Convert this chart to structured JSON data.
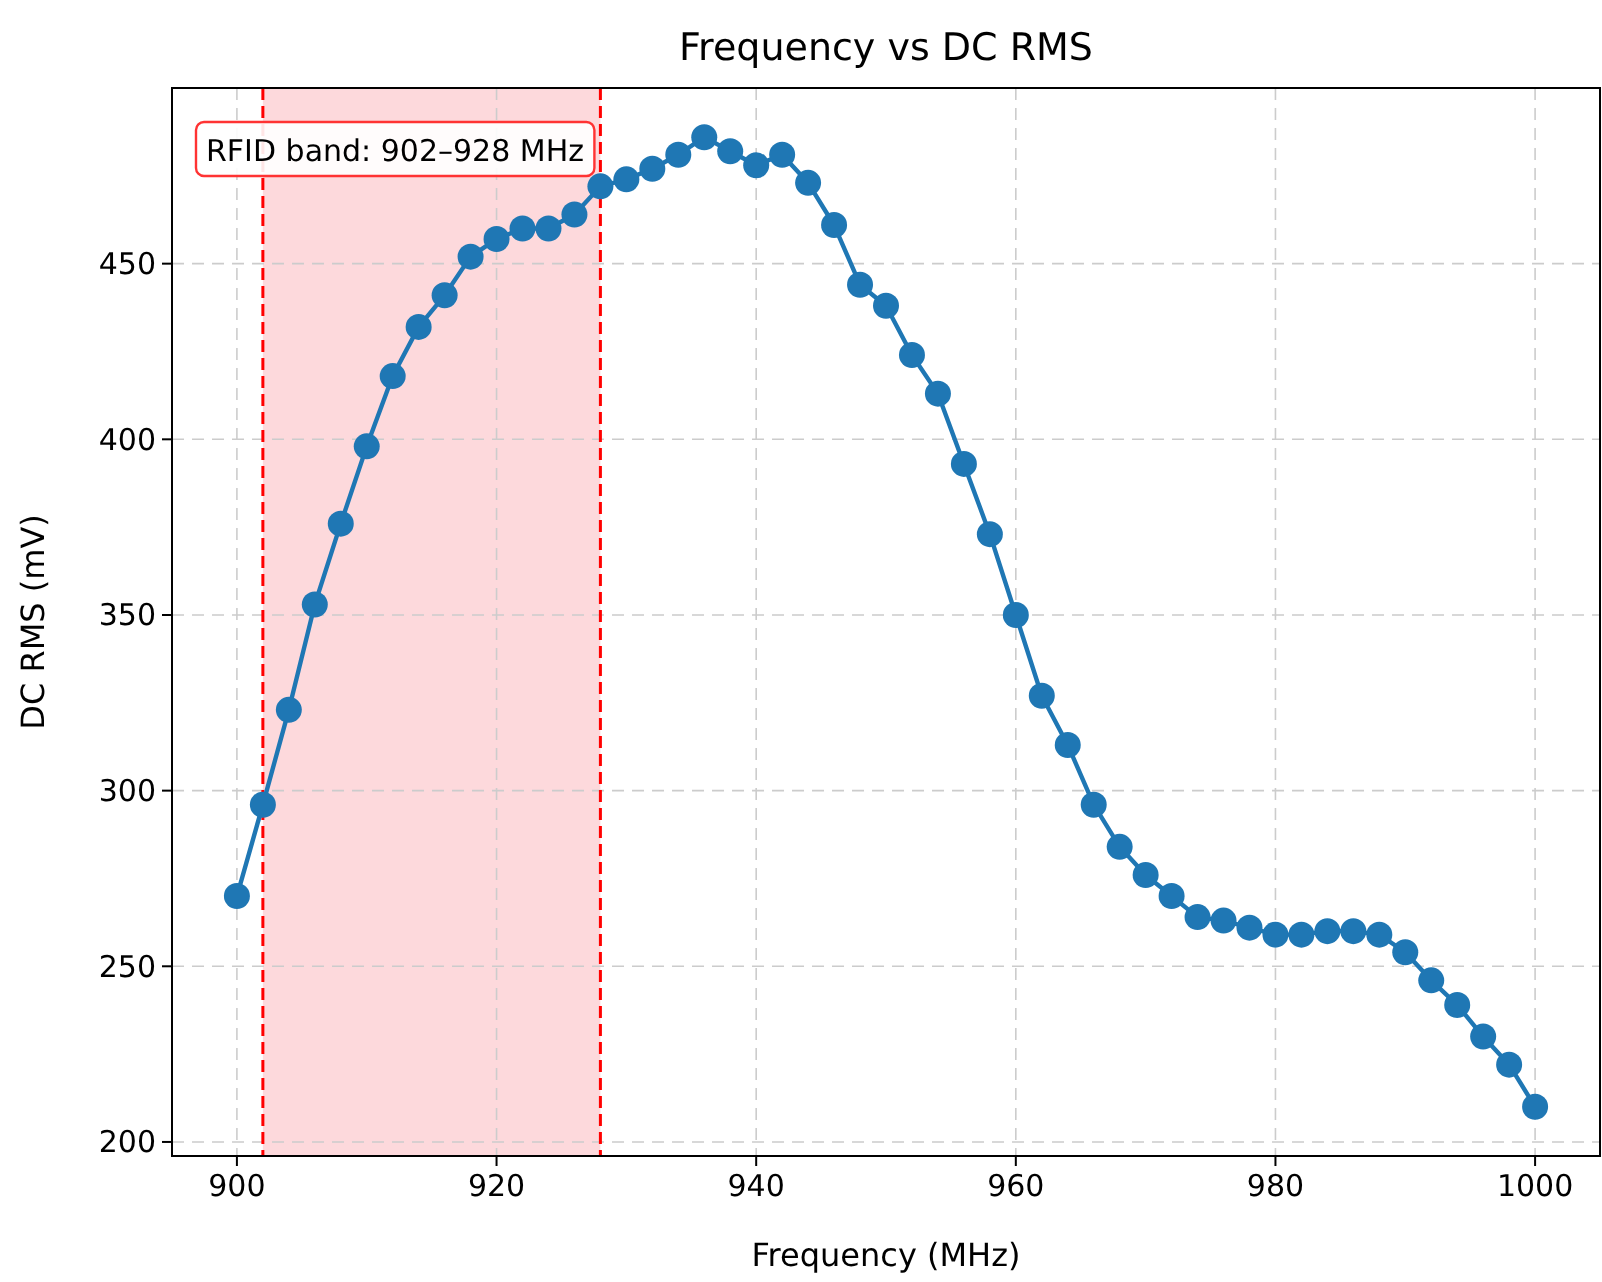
{
  "chart_data": {
    "type": "line",
    "title": "Frequency vs DC RMS",
    "xlabel": "Frequency (MHz)",
    "ylabel": "DC RMS (mV)",
    "x": [
      900,
      902,
      904,
      906,
      908,
      910,
      912,
      914,
      916,
      918,
      920,
      922,
      924,
      926,
      928,
      930,
      932,
      934,
      936,
      938,
      940,
      942,
      944,
      946,
      948,
      950,
      952,
      954,
      956,
      958,
      960,
      962,
      964,
      966,
      968,
      970,
      972,
      974,
      976,
      978,
      980,
      982,
      984,
      986,
      988,
      990,
      992,
      994,
      996,
      998,
      1000
    ],
    "series": [
      {
        "color": "#1f77b4",
        "values": [
          270,
          296,
          323,
          353,
          376,
          398,
          418,
          432,
          441,
          452,
          457,
          460,
          460,
          464,
          472,
          474,
          477,
          481,
          486,
          482,
          478,
          481,
          473,
          461,
          444,
          438,
          424,
          413,
          393,
          373,
          350,
          327,
          313,
          296,
          284,
          276,
          270,
          264,
          263,
          261,
          259,
          259,
          260,
          260,
          259,
          254,
          246,
          239,
          230,
          222,
          210
        ]
      }
    ],
    "xlim": [
      895,
      1005
    ],
    "xticks": [
      900,
      920,
      940,
      960,
      980,
      1000
    ],
    "ylim": [
      196,
      500
    ],
    "yticks": [
      200,
      250,
      300,
      350,
      400,
      450
    ],
    "grid": true,
    "marker": "circle",
    "line_style": "solid",
    "bands": [
      {
        "axis": "x",
        "from": 902,
        "to": 928,
        "color": "#fdd9dc"
      }
    ],
    "ref_lines": [
      {
        "axis": "x",
        "value": 902,
        "color": "#ff0000",
        "line_style": "dashed"
      },
      {
        "axis": "x",
        "value": 928,
        "color": "#ff0000",
        "line_style": "dashed"
      }
    ],
    "annotations": [
      "RFID band: 902–928 MHz"
    ]
  }
}
